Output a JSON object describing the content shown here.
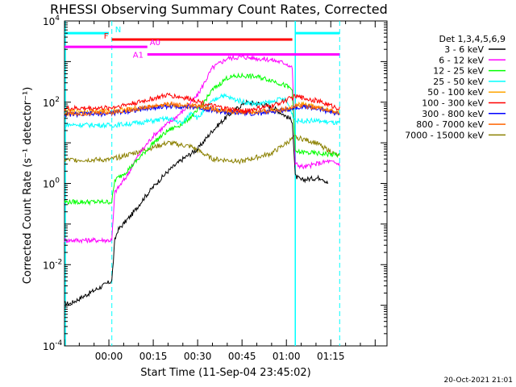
{
  "chart_data": {
    "type": "line",
    "title": "RHESSI Observing Summary Count Rates, Corrected",
    "ylabel": "Corrected Count Rate (s⁻¹ detector⁻¹)",
    "xlabel": "Start Time (11-Sep-04 23:45:02)",
    "footer_date": "20-Oct-2021 21:01",
    "y_scale": "log",
    "ylim": [
      0.0001,
      10000
    ],
    "xlim_minutes": [
      -15,
      94
    ],
    "y_ticks": [
      {
        "exp": "4"
      },
      {
        "exp": "2"
      },
      {
        "exp": "0"
      },
      {
        "exp": "-2"
      },
      {
        "exp": "-4"
      }
    ],
    "x_ticks": [
      {
        "label": "00:00",
        "min": 0
      },
      {
        "label": "00:15",
        "min": 15
      },
      {
        "label": "00:30",
        "min": 30
      },
      {
        "label": "00:45",
        "min": 45
      },
      {
        "label": "01:00",
        "min": 60
      },
      {
        "label": "01:15",
        "min": 75
      }
    ],
    "legend": {
      "header": "Det 1,3,4,5,6,9",
      "placement": "right"
    },
    "series": [
      {
        "name": "3 - 6 keV",
        "color": "#000000",
        "points": [
          [
            -15,
            0.0011
          ],
          [
            -13,
            0.0011
          ],
          [
            1,
            0.004
          ],
          [
            2,
            0.04
          ],
          [
            3,
            0.07
          ],
          [
            8,
            0.18
          ],
          [
            12,
            0.45
          ],
          [
            16,
            1.0
          ],
          [
            20,
            2.0
          ],
          [
            25,
            4.0
          ],
          [
            30,
            7.0
          ],
          [
            35,
            20.0
          ],
          [
            40,
            45.0
          ],
          [
            46,
            100.0
          ],
          [
            52,
            90.0
          ],
          [
            56,
            70.0
          ],
          [
            59,
            50.0
          ],
          [
            62,
            35.0
          ],
          [
            63,
            1.5
          ],
          [
            65,
            1.2
          ],
          [
            68,
            1.3
          ],
          [
            72,
            1.4
          ],
          [
            74,
            1.0
          ]
        ]
      },
      {
        "name": "6 - 12 keV",
        "color": "#ff00ff",
        "points": [
          [
            -15,
            0.04
          ],
          [
            1,
            0.04
          ],
          [
            2,
            0.6
          ],
          [
            6,
            1.5
          ],
          [
            10,
            5.0
          ],
          [
            15,
            15.0
          ],
          [
            20,
            30.0
          ],
          [
            25,
            60.0
          ],
          [
            30,
            150.0
          ],
          [
            35,
            700.0
          ],
          [
            40,
            1200.0
          ],
          [
            45,
            1300.0
          ],
          [
            50,
            1200.0
          ],
          [
            55,
            1100.0
          ],
          [
            60,
            900.0
          ],
          [
            62,
            700.0
          ],
          [
            63,
            3.0
          ],
          [
            66,
            2.5
          ],
          [
            70,
            3.0
          ],
          [
            74,
            3.5
          ],
          [
            78,
            3.0
          ]
        ]
      },
      {
        "name": "12 - 25 keV",
        "color": "#00ff00",
        "points": [
          [
            -15,
            0.35
          ],
          [
            1,
            0.35
          ],
          [
            2,
            1.2
          ],
          [
            6,
            2.0
          ],
          [
            10,
            4.0
          ],
          [
            15,
            10.0
          ],
          [
            20,
            20.0
          ],
          [
            25,
            30.0
          ],
          [
            30,
            60.0
          ],
          [
            35,
            200.0
          ],
          [
            40,
            400.0
          ],
          [
            45,
            450.0
          ],
          [
            50,
            420.0
          ],
          [
            55,
            350.0
          ],
          [
            60,
            250.0
          ],
          [
            62,
            200.0
          ],
          [
            63,
            6.0
          ],
          [
            70,
            5.5
          ],
          [
            78,
            5.0
          ]
        ]
      },
      {
        "name": "25 - 50 keV",
        "color": "#00ffff",
        "points": [
          [
            -15,
            28.0
          ],
          [
            1,
            27.0
          ],
          [
            8,
            30.0
          ],
          [
            15,
            35.0
          ],
          [
            20,
            40.0
          ],
          [
            25,
            30.0
          ],
          [
            28,
            60.0
          ],
          [
            30,
            40.0
          ],
          [
            34,
            90.0
          ],
          [
            38,
            150.0
          ],
          [
            42,
            120.0
          ],
          [
            46,
            100.0
          ],
          [
            50,
            90.0
          ],
          [
            55,
            100.0
          ],
          [
            58,
            120.0
          ],
          [
            60,
            110.0
          ],
          [
            63,
            35.0
          ],
          [
            70,
            35.0
          ],
          [
            78,
            30.0
          ]
        ]
      },
      {
        "name": "50 - 100 keV",
        "color": "#ffa500",
        "points": [
          [
            -15,
            60.0
          ],
          [
            0,
            60.0
          ],
          [
            10,
            70.0
          ],
          [
            20,
            85.0
          ],
          [
            30,
            75.0
          ],
          [
            40,
            60.0
          ],
          [
            50,
            58.0
          ],
          [
            60,
            65.0
          ],
          [
            65,
            90.0
          ],
          [
            72,
            70.0
          ],
          [
            78,
            55.0
          ]
        ]
      },
      {
        "name": "100 - 300 keV",
        "color": "#ff0000",
        "points": [
          [
            -15,
            70.0
          ],
          [
            0,
            72.0
          ],
          [
            10,
            100.0
          ],
          [
            20,
            150.0
          ],
          [
            28,
            120.0
          ],
          [
            35,
            80.0
          ],
          [
            45,
            60.0
          ],
          [
            55,
            80.0
          ],
          [
            63,
            140.0
          ],
          [
            70,
            110.0
          ],
          [
            78,
            70.0
          ]
        ]
      },
      {
        "name": "300 - 800 keV",
        "color": "#0000ff",
        "points": [
          [
            -15,
            50.0
          ],
          [
            0,
            52.0
          ],
          [
            10,
            65.0
          ],
          [
            20,
            80.0
          ],
          [
            30,
            75.0
          ],
          [
            40,
            55.0
          ],
          [
            50,
            52.0
          ],
          [
            60,
            65.0
          ],
          [
            65,
            80.0
          ],
          [
            72,
            65.0
          ],
          [
            78,
            50.0
          ]
        ]
      },
      {
        "name": "800 - 7000 keV",
        "color": "#ff6400",
        "points": [
          [
            -15,
            52.0
          ],
          [
            0,
            55.0
          ],
          [
            10,
            70.0
          ],
          [
            20,
            90.0
          ],
          [
            30,
            80.0
          ],
          [
            40,
            60.0
          ],
          [
            50,
            55.0
          ],
          [
            60,
            70.0
          ],
          [
            65,
            85.0
          ],
          [
            72,
            70.0
          ],
          [
            78,
            52.0
          ]
        ]
      },
      {
        "name": "7000 - 15000 keV",
        "color": "#8b8000",
        "points": [
          [
            -15,
            3.8
          ],
          [
            0,
            3.8
          ],
          [
            10,
            6.0
          ],
          [
            20,
            10.0
          ],
          [
            28,
            8.0
          ],
          [
            35,
            4.0
          ],
          [
            45,
            3.5
          ],
          [
            55,
            5.5
          ],
          [
            63,
            14.0
          ],
          [
            70,
            10.0
          ],
          [
            78,
            4.5
          ]
        ]
      }
    ],
    "annotations": [
      {
        "label": "N",
        "color": "#00ffff",
        "y": 5000,
        "segments": [
          [
            -15,
            0
          ],
          [
            63,
            78
          ]
        ]
      },
      {
        "label": "F",
        "color": "#ff0000",
        "y": 3500,
        "segments": [
          [
            1,
            62
          ]
        ]
      },
      {
        "label": "A0",
        "color": "#ff00ff",
        "y": 2300,
        "segments": [
          [
            -15,
            13
          ]
        ]
      },
      {
        "label": "A1",
        "color": "#ff00ff",
        "y": 1500,
        "segments": [
          [
            13,
            78
          ]
        ]
      }
    ],
    "vlines_solid_minutes": [
      -15,
      63
    ],
    "vlines_dashed_minutes": [
      1,
      78
    ]
  }
}
